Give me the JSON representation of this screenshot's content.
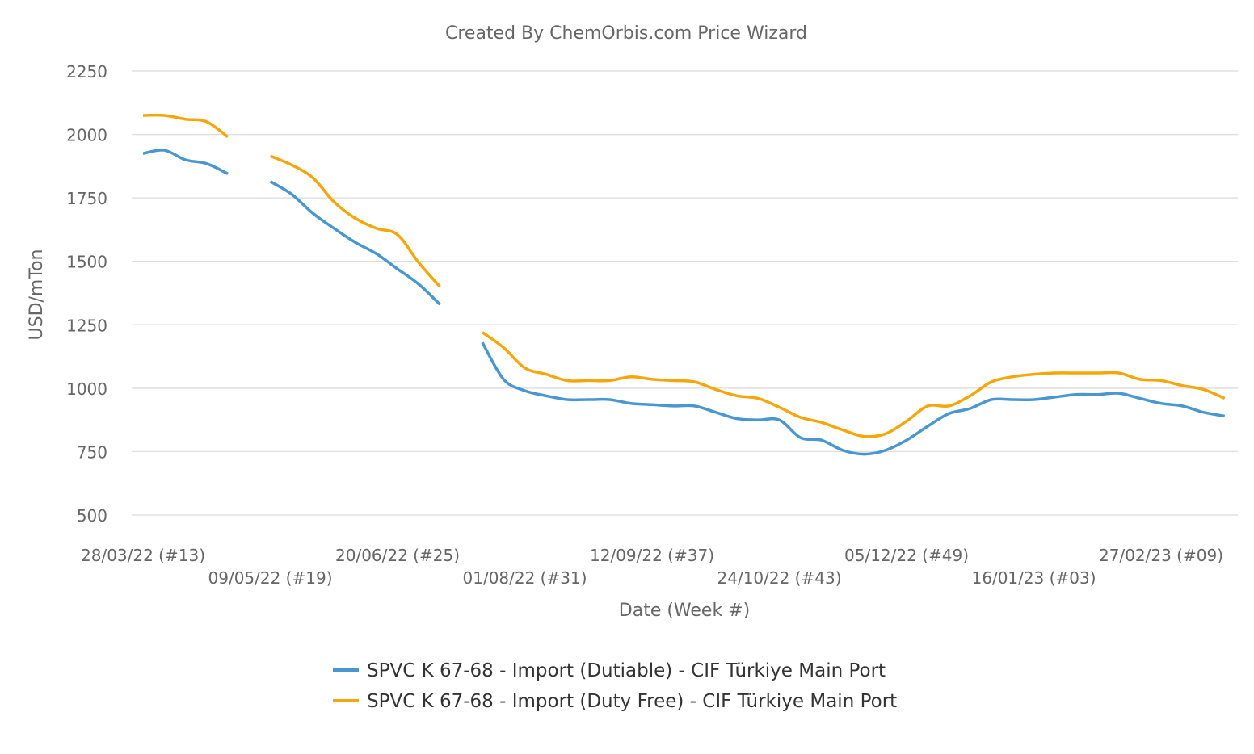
{
  "chart_data": {
    "type": "line",
    "title": "Created By ChemOrbis.com Price Wizard",
    "xlabel": "Date (Week #)",
    "ylabel": "USD/mTon",
    "ylim": [
      500,
      2250
    ],
    "yticks": [
      500,
      750,
      1000,
      1250,
      1500,
      1750,
      2000,
      2250
    ],
    "grid": true,
    "legend_position": "bottom",
    "xtick_labels": [
      {
        "date": "28/03/22",
        "label": "28/03/22 (#13)"
      },
      {
        "date": "09/05/22",
        "label": "09/05/22 (#19)"
      },
      {
        "date": "20/06/22",
        "label": "20/06/22 (#25)"
      },
      {
        "date": "01/08/22",
        "label": "01/08/22 (#31)"
      },
      {
        "date": "12/09/22",
        "label": "12/09/22 (#37)"
      },
      {
        "date": "24/10/22",
        "label": "24/10/22 (#43)"
      },
      {
        "date": "05/12/22",
        "label": "05/12/22 (#49)"
      },
      {
        "date": "16/01/23",
        "label": "16/01/23 (#03)"
      },
      {
        "date": "27/02/23",
        "label": "27/02/23 (#09)"
      }
    ],
    "x": [
      "28/03/22",
      "04/04/22",
      "11/04/22",
      "18/04/22",
      "25/04/22",
      "02/05/22",
      "09/05/22",
      "16/05/22",
      "23/05/22",
      "30/05/22",
      "06/06/22",
      "13/06/22",
      "20/06/22",
      "27/06/22",
      "04/07/22",
      "11/07/22",
      "18/07/22",
      "25/07/22",
      "01/08/22",
      "08/08/22",
      "15/08/22",
      "22/08/22",
      "29/08/22",
      "05/09/22",
      "12/09/22",
      "19/09/22",
      "26/09/22",
      "03/10/22",
      "10/10/22",
      "17/10/22",
      "24/10/22",
      "31/10/22",
      "07/11/22",
      "14/11/22",
      "21/11/22",
      "28/11/22",
      "05/12/22",
      "12/12/22",
      "19/12/22",
      "26/12/22",
      "02/01/23",
      "09/01/23",
      "16/01/23",
      "23/01/23",
      "30/01/23",
      "06/02/23",
      "13/02/23",
      "20/02/23",
      "27/02/23",
      "06/03/23",
      "13/03/23",
      "20/03/23"
    ],
    "series": [
      {
        "name": "SPVC K 67-68 - Import (Dutiable) - CIF Türkiye Main Port",
        "color": "#4a97cf",
        "values": [
          1925,
          1938,
          1900,
          1885,
          1845,
          null,
          1815,
          1765,
          1690,
          1630,
          1575,
          1530,
          1470,
          1410,
          1330,
          null,
          1180,
          1035,
          990,
          970,
          955,
          955,
          955,
          940,
          935,
          930,
          930,
          905,
          880,
          875,
          875,
          805,
          795,
          755,
          740,
          755,
          795,
          850,
          900,
          920,
          955,
          955,
          955,
          965,
          975,
          975,
          980,
          960,
          940,
          930,
          905,
          890
        ]
      },
      {
        "name": "SPVC K 67-68 - Import (Duty Free) - CIF Türkiye Main Port",
        "color": "#f5a60a",
        "values": [
          2075,
          2075,
          2060,
          2050,
          1990,
          null,
          1915,
          1880,
          1830,
          1735,
          1670,
          1630,
          1605,
          1495,
          1400,
          null,
          1220,
          1160,
          1080,
          1055,
          1030,
          1030,
          1030,
          1045,
          1035,
          1030,
          1025,
          995,
          970,
          960,
          925,
          885,
          865,
          835,
          810,
          820,
          870,
          930,
          930,
          970,
          1025,
          1045,
          1055,
          1060,
          1060,
          1060,
          1060,
          1035,
          1030,
          1010,
          995,
          960
        ]
      }
    ]
  }
}
